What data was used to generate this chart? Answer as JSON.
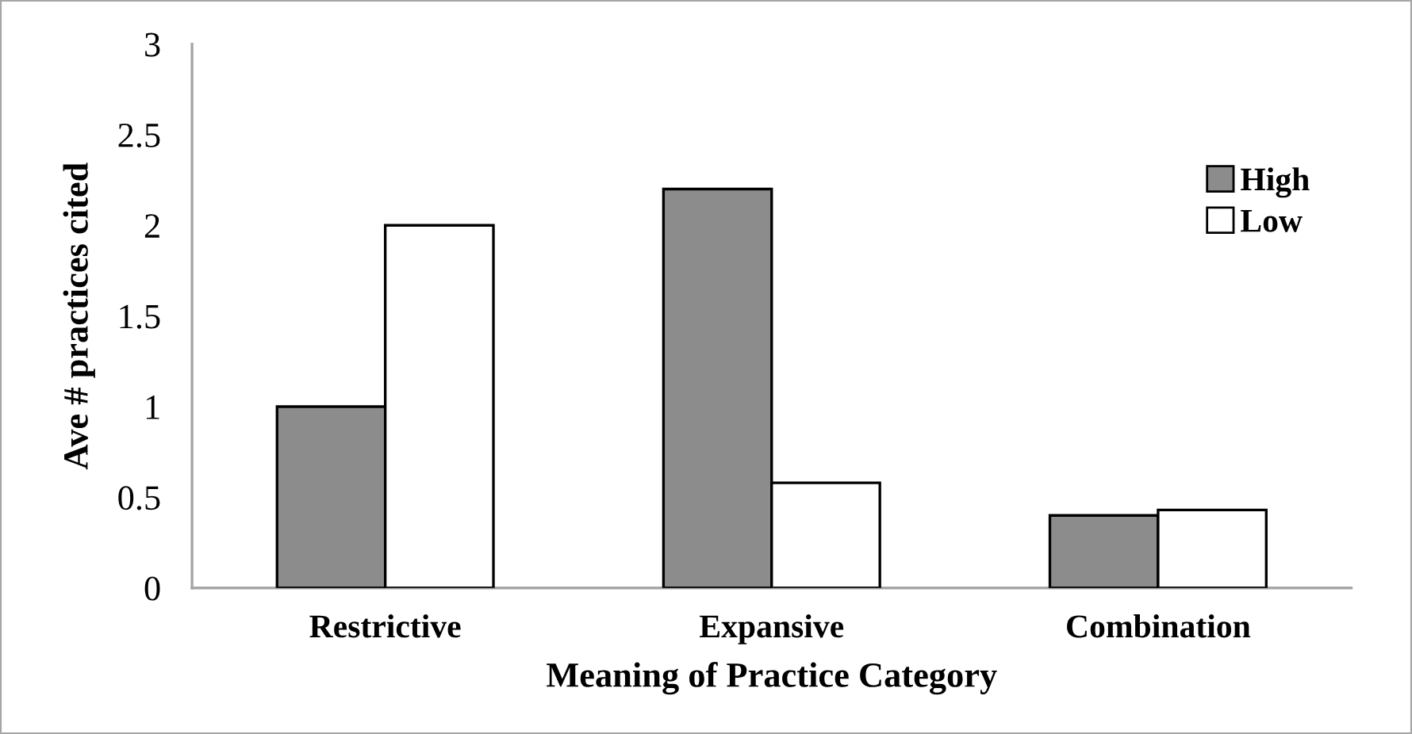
{
  "chart_data": {
    "type": "bar",
    "xlabel": "Meaning of Practice Category",
    "ylabel": "Ave # practices cited",
    "categories": [
      "Restrictive",
      "Expansive",
      "Combination"
    ],
    "series": [
      {
        "name": "High",
        "color": "#8c8c8c",
        "values": [
          1.0,
          2.2,
          0.4
        ]
      },
      {
        "name": "Low",
        "color": "#ffffff",
        "values": [
          2.0,
          0.58,
          0.43
        ]
      }
    ],
    "ylim": [
      0,
      3
    ],
    "yticks": [
      0,
      0.5,
      1,
      1.5,
      2,
      2.5,
      3
    ],
    "grid": false,
    "legend": "top right"
  }
}
